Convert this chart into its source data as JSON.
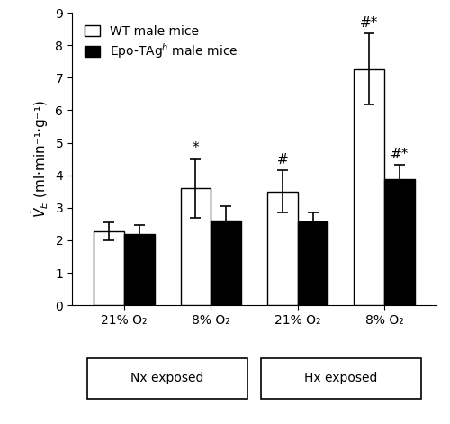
{
  "groups": [
    "21% O₂",
    "8% O₂",
    "21% O₂",
    "8% O₂"
  ],
  "wt_values": [
    2.28,
    3.6,
    3.5,
    7.27
  ],
  "wt_errors": [
    0.28,
    0.9,
    0.65,
    1.1
  ],
  "epo_values": [
    2.2,
    2.62,
    2.57,
    3.87
  ],
  "epo_errors": [
    0.28,
    0.43,
    0.28,
    0.45
  ],
  "wt_annotations": [
    "",
    "*",
    "#",
    "#*"
  ],
  "epo_annotations": [
    "",
    "",
    "",
    "#*"
  ],
  "ylabel": "$\\dot{V}_{E}$ (ml·min⁻¹·g⁻¹)",
  "ylim": [
    0,
    9
  ],
  "yticks": [
    0,
    1,
    2,
    3,
    4,
    5,
    6,
    7,
    8,
    9
  ],
  "wt_color": "white",
  "epo_color": "black",
  "wt_label": "WT male mice",
  "epo_label": "Epo-TAg$^h$ male mice",
  "bar_width": 0.35,
  "group_positions": [
    1,
    2,
    3,
    4
  ],
  "nx_label": "Nx exposed",
  "hx_label": "Hx exposed",
  "edge_color": "black",
  "annotation_fontsize": 11,
  "tick_fontsize": 10,
  "ylabel_fontsize": 11,
  "legend_fontsize": 10,
  "xlim": [
    0.4,
    4.6
  ]
}
